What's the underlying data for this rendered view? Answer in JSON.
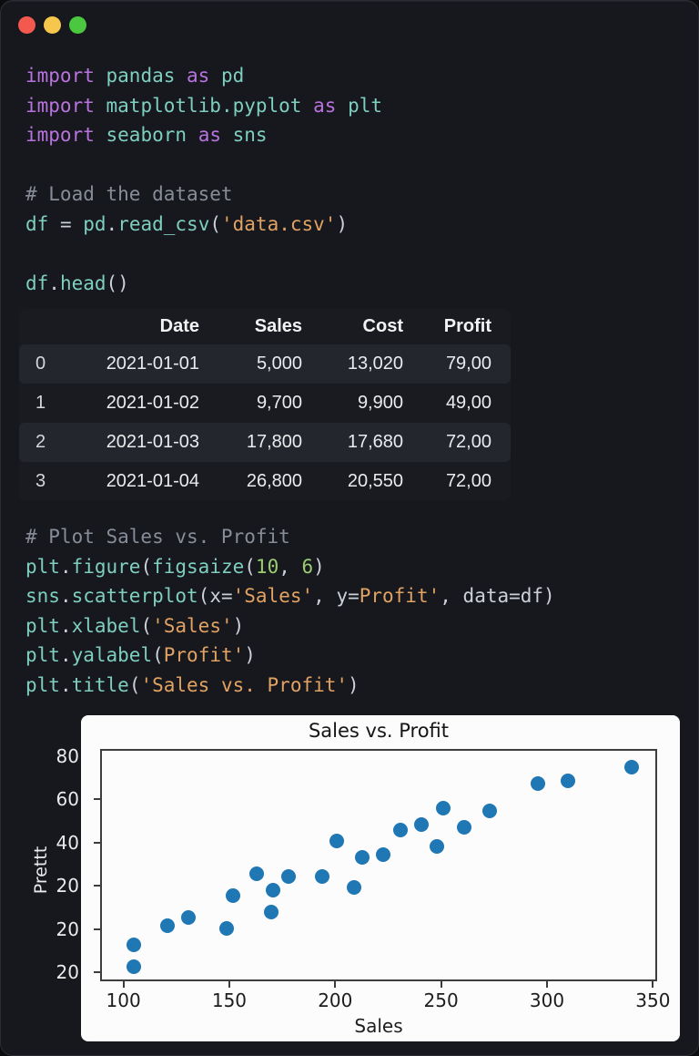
{
  "window": {
    "traffic_lights": {
      "close": "#f4594f",
      "minimize": "#f6c64d",
      "zoom": "#4bc840"
    }
  },
  "colors": {
    "background": "#16181d",
    "table_stripe": "#24262d",
    "syntax": {
      "keyword": "#b873de",
      "identifier": "#7ecfc0",
      "string": "#e2a263",
      "number": "#9ccc72",
      "comment": "#878d98",
      "plain": "#ccd0d8"
    }
  },
  "code_top": {
    "lines": [
      [
        [
          "import",
          "kw"
        ],
        [
          " ",
          "pl"
        ],
        [
          "pandas",
          "id"
        ],
        [
          " ",
          "pl"
        ],
        [
          "as",
          "kw"
        ],
        [
          " ",
          "pl"
        ],
        [
          "pd",
          "id"
        ]
      ],
      [
        [
          "import",
          "kw"
        ],
        [
          " ",
          "pl"
        ],
        [
          "matplotlib.pyplot",
          "id"
        ],
        [
          " ",
          "pl"
        ],
        [
          "as",
          "kw"
        ],
        [
          " ",
          "pl"
        ],
        [
          "plt",
          "id"
        ]
      ],
      [
        [
          "import",
          "kw"
        ],
        [
          " ",
          "pl"
        ],
        [
          "seaborn",
          "id"
        ],
        [
          " ",
          "pl"
        ],
        [
          "as",
          "kw"
        ],
        [
          " ",
          "pl"
        ],
        [
          "sns",
          "id"
        ]
      ],
      [],
      [
        [
          "# Load the dataset",
          "cmt"
        ]
      ],
      [
        [
          "df",
          "id"
        ],
        [
          " = ",
          "pl"
        ],
        [
          "pd",
          "id"
        ],
        [
          ".",
          "pl"
        ],
        [
          "read_csv",
          "id"
        ],
        [
          "(",
          "pl"
        ],
        [
          "'data.csv'",
          "str"
        ],
        [
          ")",
          "pl"
        ]
      ],
      [],
      [
        [
          "df",
          "id"
        ],
        [
          ".",
          "pl"
        ],
        [
          "head",
          "id"
        ],
        [
          "()",
          "pl"
        ]
      ]
    ]
  },
  "table": {
    "headers": [
      "",
      "Date",
      "Sales",
      "Cost",
      "Profit"
    ],
    "rows": [
      [
        "0",
        "2021-01-01",
        "5,000",
        "13,020",
        "79,00"
      ],
      [
        "1",
        "2021-01-02",
        "9,700",
        "9,900",
        "49,00"
      ],
      [
        "2",
        "2021-01-03",
        "17,800",
        "17,680",
        "72,00"
      ],
      [
        "3",
        "2021-01-04",
        "26,800",
        "20,550",
        "72,00"
      ]
    ],
    "striped_rows": [
      0,
      2
    ]
  },
  "code_bottom": {
    "lines": [
      [
        [
          "# Plot Sales vs. Profit",
          "cmt"
        ]
      ],
      [
        [
          "plt",
          "id"
        ],
        [
          ".",
          "pl"
        ],
        [
          "figure",
          "id"
        ],
        [
          "(",
          "pl"
        ],
        [
          "figsaize",
          "id"
        ],
        [
          "(",
          "pl"
        ],
        [
          "10",
          "num"
        ],
        [
          ", ",
          "pl"
        ],
        [
          "6",
          "num"
        ],
        [
          ")",
          "pl"
        ]
      ],
      [
        [
          "sns",
          "id"
        ],
        [
          ".",
          "pl"
        ],
        [
          "scatterplot",
          "id"
        ],
        [
          "(",
          "pl"
        ],
        [
          "x=",
          "pl"
        ],
        [
          "'Sales'",
          "str"
        ],
        [
          ", ",
          "pl"
        ],
        [
          "y=",
          "pl"
        ],
        [
          "Profit'",
          "str"
        ],
        [
          ", ",
          "pl"
        ],
        [
          "data=df)",
          "pl"
        ]
      ],
      [
        [
          "plt",
          "id"
        ],
        [
          ".",
          "pl"
        ],
        [
          "xlabel",
          "id"
        ],
        [
          "(",
          "pl"
        ],
        [
          "'Sales'",
          "str"
        ],
        [
          ")",
          "pl"
        ]
      ],
      [
        [
          "plt",
          "id"
        ],
        [
          ".",
          "pl"
        ],
        [
          "yalabel",
          "id"
        ],
        [
          "(",
          "pl"
        ],
        [
          "Profit'",
          "str"
        ],
        [
          ")",
          "pl"
        ]
      ],
      [
        [
          "plt",
          "id"
        ],
        [
          ".",
          "pl"
        ],
        [
          "title",
          "id"
        ],
        [
          "(",
          "pl"
        ],
        [
          "'Sales vs. Profit'",
          "str"
        ],
        [
          ")",
          "pl"
        ]
      ]
    ]
  },
  "chart_data": {
    "type": "scatter",
    "title": "Sales vs. Profit",
    "xlabel": "Sales",
    "ylabel": "Prettt",
    "x_ticks": [
      100,
      150,
      200,
      250,
      300,
      350
    ],
    "y_tick_labels": [
      "80",
      "60",
      "40",
      "20",
      "20",
      "20"
    ],
    "xlim": [
      89,
      352
    ],
    "ylim": [
      0,
      85
    ],
    "grid": false,
    "legend": "none",
    "point_color": "#1f77b4",
    "points": [
      [
        104,
        14
      ],
      [
        104,
        6
      ],
      [
        120,
        21
      ],
      [
        130,
        24
      ],
      [
        148,
        20
      ],
      [
        151,
        32
      ],
      [
        162,
        40
      ],
      [
        169,
        26
      ],
      [
        170,
        34
      ],
      [
        177,
        39
      ],
      [
        193,
        39
      ],
      [
        200,
        52
      ],
      [
        208,
        35
      ],
      [
        212,
        46
      ],
      [
        222,
        47
      ],
      [
        230,
        56
      ],
      [
        240,
        58
      ],
      [
        247,
        50
      ],
      [
        250,
        64
      ],
      [
        260,
        57
      ],
      [
        272,
        63
      ],
      [
        295,
        73
      ],
      [
        309,
        74
      ],
      [
        339,
        79
      ]
    ]
  }
}
